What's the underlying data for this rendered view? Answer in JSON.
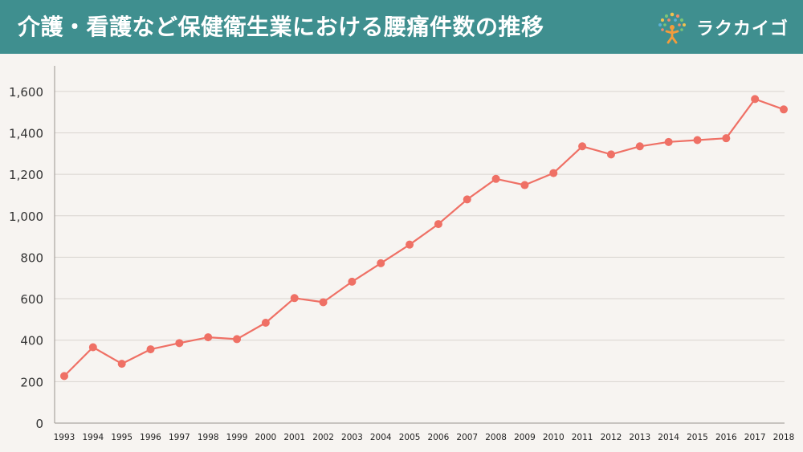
{
  "header": {
    "title": "介護・看護など保健衛生業における腰痛件数の推移",
    "logo_text": "ラクカイゴ",
    "background": "#3f8f8f"
  },
  "chart_data": {
    "type": "line",
    "title": "介護・看護など保健衛生業における腰痛件数の推移",
    "xlabel": "",
    "ylabel": "",
    "x": [
      "1993",
      "1994",
      "1995",
      "1996",
      "1997",
      "1998",
      "1999",
      "2000",
      "2001",
      "2002",
      "2003",
      "2004",
      "2005",
      "2006",
      "2007",
      "2008",
      "2009",
      "2010",
      "2011",
      "2012",
      "2013",
      "2014",
      "2015",
      "2016",
      "2017",
      "2018"
    ],
    "series": [
      {
        "values": [
          227,
          366,
          286,
          356,
          386,
          414,
          405,
          484,
          603,
          583,
          682,
          771,
          861,
          960,
          1079,
          1178,
          1148,
          1206,
          1335,
          1296,
          1335,
          1356,
          1365,
          1374,
          1563,
          1513
        ],
        "color": "#ef7065"
      }
    ],
    "ylim": [
      0,
      1700
    ],
    "yticks": [
      0,
      200,
      400,
      600,
      800,
      1000,
      1200,
      1400,
      1600
    ],
    "ytick_labels": [
      "0",
      "200",
      "400",
      "600",
      "800",
      "1,000",
      "1,200",
      "1,400",
      "1,600"
    ],
    "grid": true,
    "legend": "none"
  }
}
